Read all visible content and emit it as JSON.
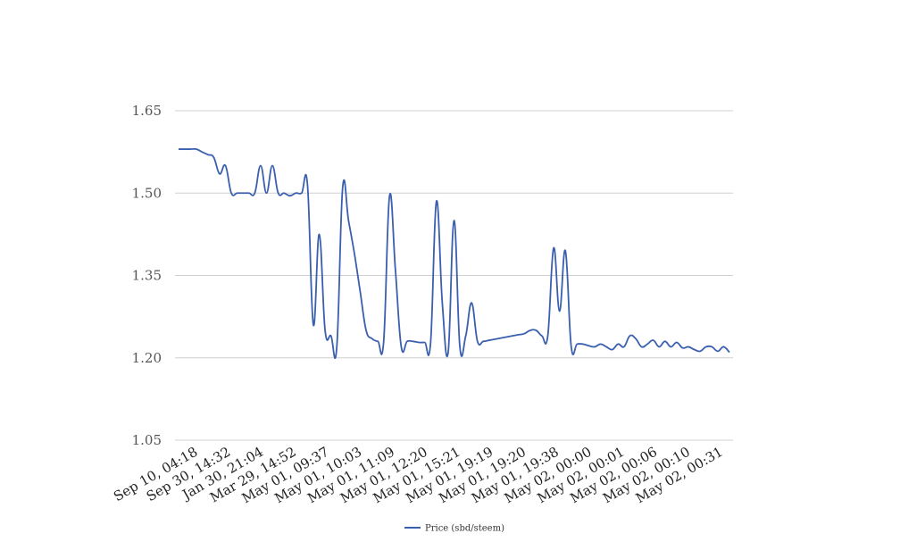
{
  "chart_data": {
    "type": "line",
    "title": "",
    "xlabel": "",
    "ylabel": "",
    "ylim": [
      1.05,
      1.65
    ],
    "y_ticks": [
      "1.05",
      "1.20",
      "1.35",
      "1.50",
      "1.65"
    ],
    "grid": true,
    "legend_position": "bottom",
    "line_color": "#3a5fae",
    "x_tick_labels": [
      "Sep 10, 04:18",
      "Sep 30, 14:32",
      "Jan 30, 21:04",
      "Mar 29, 14:52",
      "May 01, 09:37",
      "May 01, 10:03",
      "May 01, 11:09",
      "May 01, 12:20",
      "May 01, 15:21",
      "May 01, 19:19",
      "May 01, 19:20",
      "May 01, 19:38",
      "May 02, 00:00",
      "May 02, 00:01",
      "May 02, 00:06",
      "May 02, 00:10",
      "May 02, 00:31"
    ],
    "series": [
      {
        "name": "Price (sbd/steem)",
        "values": [
          1.58,
          1.58,
          1.58,
          1.58,
          1.575,
          1.57,
          1.565,
          1.535,
          1.55,
          1.5,
          1.5,
          1.5,
          1.5,
          1.5,
          1.55,
          1.5,
          1.55,
          1.5,
          1.5,
          1.495,
          1.5,
          1.5,
          1.515,
          1.26,
          1.425,
          1.25,
          1.24,
          1.22,
          1.51,
          1.45,
          1.39,
          1.32,
          1.25,
          1.235,
          1.23,
          1.23,
          1.495,
          1.36,
          1.22,
          1.23,
          1.23,
          1.228,
          1.228,
          1.227,
          1.485,
          1.3,
          1.21,
          1.45,
          1.22,
          1.24,
          1.3,
          1.23,
          1.23,
          1.232,
          1.234,
          1.236,
          1.238,
          1.24,
          1.242,
          1.244,
          1.25,
          1.25,
          1.24,
          1.24,
          1.4,
          1.285,
          1.395,
          1.22,
          1.225,
          1.225,
          1.222,
          1.22,
          1.225,
          1.22,
          1.215,
          1.225,
          1.22,
          1.24,
          1.235,
          1.22,
          1.225,
          1.232,
          1.22,
          1.23,
          1.22,
          1.228,
          1.218,
          1.22,
          1.215,
          1.212,
          1.22,
          1.22,
          1.212,
          1.22,
          1.21
        ]
      }
    ]
  }
}
